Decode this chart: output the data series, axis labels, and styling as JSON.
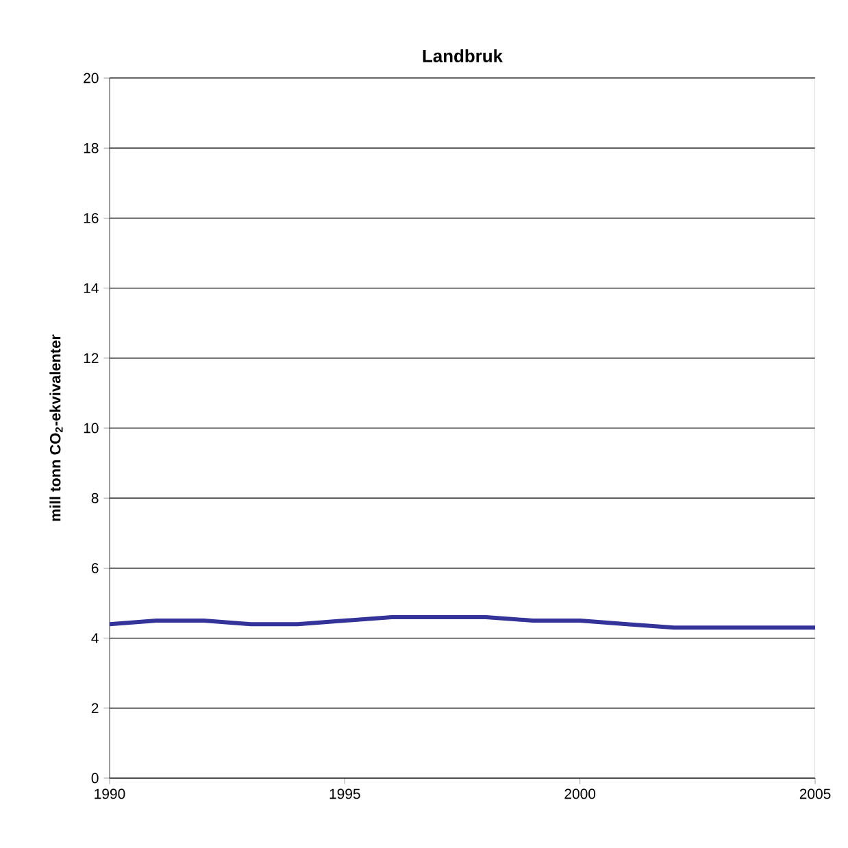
{
  "chart_data": {
    "type": "line",
    "title": "Landbruk",
    "ylabel": "mill tonn CO$_{2}$-ekvivalenter",
    "x": [
      1990,
      1991,
      1992,
      1993,
      1994,
      1995,
      1996,
      1997,
      1998,
      1999,
      2000,
      2001,
      2002,
      2003,
      2004,
      2005
    ],
    "series": [
      {
        "color": "#333399",
        "values": [
          4.4,
          4.5,
          4.5,
          4.4,
          4.4,
          4.5,
          4.6,
          4.6,
          4.6,
          4.5,
          4.5,
          4.4,
          4.3,
          4.3,
          4.3,
          4.3
        ]
      }
    ],
    "xlim": [
      1990,
      2005
    ],
    "xticks": [
      1990,
      1995,
      2000,
      2005
    ],
    "ylim": [
      0,
      20
    ],
    "yticks": [
      0,
      2,
      4,
      6,
      8,
      10,
      12,
      14,
      16,
      18,
      20
    ],
    "grid": "y",
    "marker": "none",
    "line_style": "solid"
  }
}
